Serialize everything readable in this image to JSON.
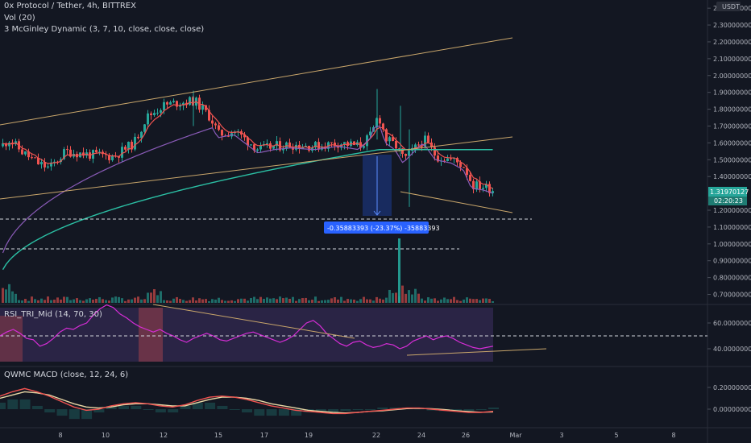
{
  "chart_data": {
    "type": "candlestick",
    "title": "0x Protocol / Tether, 4h, BITTREX",
    "currency": "USDT",
    "indicators": [
      "Vol (20)",
      "3 McGinley Dynamic (3, 7, 10, close, close, close)"
    ],
    "price_axis_labels": [
      "2.40000000",
      "2.30000000",
      "2.20000000",
      "2.10000000",
      "2.00000000",
      "1.90000000",
      "1.80000000",
      "1.70000000",
      "1.60000000",
      "1.50000000",
      "1.40000000",
      "1.20000000",
      "1.10000000",
      "1.00000000",
      "0.90000000",
      "0.80000000",
      "0.70000000"
    ],
    "price_ylim": [
      0.65,
      2.45
    ],
    "last_price": "1.31970127",
    "countdown": "02:20:23",
    "measure_label": "-0.35883393 (-23.37%) -35883393",
    "x_axis_labels": [
      "8",
      "10",
      "12",
      "15",
      "17",
      "19",
      "22",
      "24",
      "26",
      "Mar",
      "3",
      "5",
      "8"
    ],
    "price_series_sampled": [
      {
        "x": "Feb 6",
        "close": 1.62
      },
      {
        "x": "Feb 7",
        "close": 1.55
      },
      {
        "x": "Feb 8",
        "close": 1.5
      },
      {
        "x": "Feb 9",
        "close": 1.55
      },
      {
        "x": "Feb 10",
        "close": 1.53
      },
      {
        "x": "Feb 11",
        "close": 1.62
      },
      {
        "x": "Feb 12",
        "close": 1.82
      },
      {
        "x": "Feb 13",
        "close": 1.84
      },
      {
        "x": "Feb 14",
        "close": 1.82
      },
      {
        "x": "Feb 15",
        "close": 1.68
      },
      {
        "x": "Feb 16",
        "close": 1.62
      },
      {
        "x": "Feb 17",
        "close": 1.53
      },
      {
        "x": "Feb 18",
        "close": 1.58
      },
      {
        "x": "Feb 19",
        "close": 1.58
      },
      {
        "x": "Feb 20",
        "close": 1.57
      },
      {
        "x": "Feb 21",
        "close": 1.56
      },
      {
        "x": "Feb 22",
        "close": 1.75
      },
      {
        "x": "Feb 23",
        "close": 1.5
      },
      {
        "x": "Feb 24",
        "close": 1.55
      },
      {
        "x": "Feb 25",
        "close": 1.5
      },
      {
        "x": "Feb 26",
        "close": 1.34
      },
      {
        "x": "Feb 27",
        "close": 1.32
      }
    ],
    "rsi_panel": {
      "label": "RSI_TRI_Mid (14, 70, 30)",
      "axis_labels": [
        "60.00000000",
        "40.00000000"
      ],
      "ylim": [
        27,
        78
      ],
      "level_dashed": 50,
      "values": [
        50,
        53,
        55,
        52,
        48,
        47,
        42,
        44,
        48,
        53,
        56,
        55,
        58,
        60,
        66,
        71,
        74,
        72,
        67,
        64,
        60,
        57,
        55,
        53,
        55,
        52,
        50,
        47,
        45,
        48,
        50,
        52,
        50,
        47,
        46,
        48,
        50,
        52,
        53,
        51,
        49,
        47,
        45,
        47,
        50,
        55,
        60,
        62,
        58,
        52,
        48,
        44,
        42,
        45,
        46,
        43,
        41,
        42,
        44,
        43,
        40,
        42,
        46,
        48,
        50,
        47,
        49,
        50,
        48,
        45,
        43,
        41,
        40,
        41,
        42
      ]
    },
    "macd_panel": {
      "label": "QWMC MACD (close, 12, 24, 6)",
      "axis_labels": [
        "0.20000000",
        "0.00000000"
      ],
      "ylim": [
        -0.07,
        0.28
      ],
      "macd": [
        0.12,
        0.16,
        0.19,
        0.16,
        0.12,
        0.07,
        0.02,
        -0.01,
        0.0,
        0.03,
        0.05,
        0.06,
        0.05,
        0.03,
        0.02,
        0.04,
        0.08,
        0.11,
        0.12,
        0.11,
        0.09,
        0.06,
        0.03,
        0.01,
        -0.01,
        -0.02,
        -0.03,
        -0.04,
        -0.04,
        -0.03,
        -0.02,
        -0.01,
        0.0,
        0.01,
        0.01,
        0.0,
        -0.01,
        -0.02,
        -0.03,
        -0.03,
        -0.02
      ],
      "signal": [
        0.1,
        0.13,
        0.16,
        0.15,
        0.13,
        0.09,
        0.05,
        0.02,
        0.01,
        0.02,
        0.04,
        0.05,
        0.05,
        0.04,
        0.03,
        0.03,
        0.06,
        0.09,
        0.11,
        0.11,
        0.1,
        0.08,
        0.05,
        0.03,
        0.01,
        -0.01,
        -0.02,
        -0.03,
        -0.035,
        -0.03,
        -0.02,
        -0.015,
        -0.005,
        0.005,
        0.008,
        0.004,
        -0.004,
        -0.014,
        -0.022,
        -0.028,
        -0.025
      ]
    },
    "colors": {
      "background": "#131722",
      "up": "#26a69a",
      "down": "#ef5350",
      "channel": "#c9a66b",
      "teal_ma": "#2bbfa4",
      "purple_ma": "#8a5bb8",
      "red_ma": "#ef5350",
      "rsi_line": "#d62dd6",
      "measure_box": "#2962ff"
    }
  }
}
